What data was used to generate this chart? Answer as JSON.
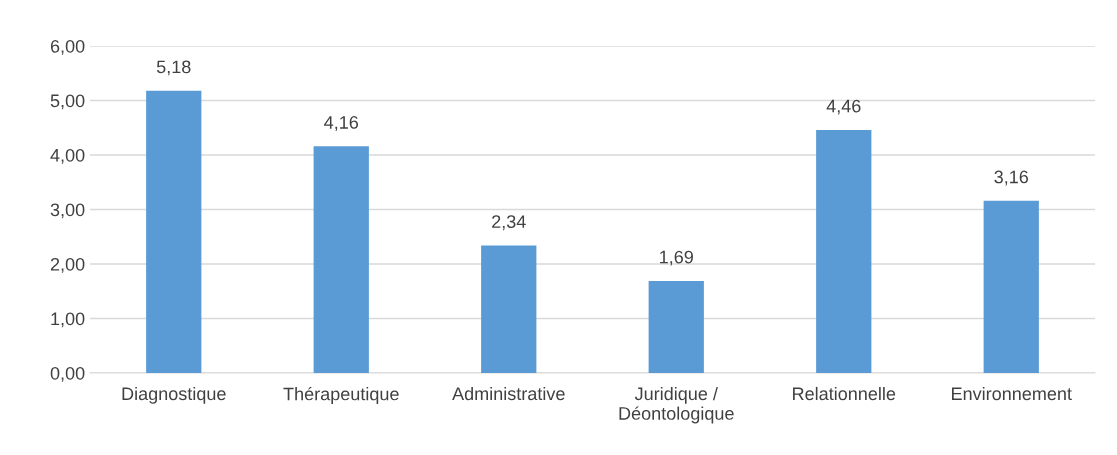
{
  "chart_data": {
    "type": "bar",
    "categories": [
      "Diagnostique",
      "Thérapeutique",
      "Administrative",
      "Juridique /\nDéontologique",
      "Relationnelle",
      "Environnement"
    ],
    "values": [
      5.18,
      4.16,
      2.34,
      1.69,
      4.46,
      3.16
    ],
    "value_labels": [
      "5,18",
      "4,16",
      "2,34",
      "1,69",
      "4,46",
      "3,16"
    ],
    "color": "#5b9bd5",
    "ylim": [
      0,
      6
    ],
    "yticks": [
      {
        "value": 0,
        "label": "0,00"
      },
      {
        "value": 1,
        "label": "1,00"
      },
      {
        "value": 2,
        "label": "2,00"
      },
      {
        "value": 3,
        "label": "3,00"
      },
      {
        "value": 4,
        "label": "4,00"
      },
      {
        "value": 5,
        "label": "5,00"
      },
      {
        "value": 6,
        "label": "6,00"
      }
    ],
    "grid": "y"
  }
}
